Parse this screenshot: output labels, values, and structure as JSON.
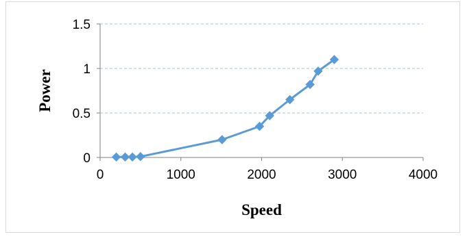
{
  "chart_data": {
    "type": "line",
    "title": "",
    "xlabel": "Speed",
    "ylabel": "Power",
    "xlim": [
      0,
      4000
    ],
    "ylim": [
      0,
      1.5
    ],
    "xticks": [
      0,
      1000,
      2000,
      3000,
      4000
    ],
    "yticks": [
      0,
      0.5,
      1,
      1.5
    ],
    "grid": "horizontal-dashed",
    "legend": "none",
    "series": [
      {
        "color": "#5b9bd5",
        "marker": "diamond",
        "x": [
          200,
          310,
          400,
          500,
          1510,
          1975,
          2100,
          2350,
          2600,
          2700,
          2900
        ],
        "y": [
          0.005,
          0.005,
          0.005,
          0.01,
          0.2,
          0.35,
          0.47,
          0.65,
          0.82,
          0.97,
          1.1
        ]
      }
    ]
  }
}
